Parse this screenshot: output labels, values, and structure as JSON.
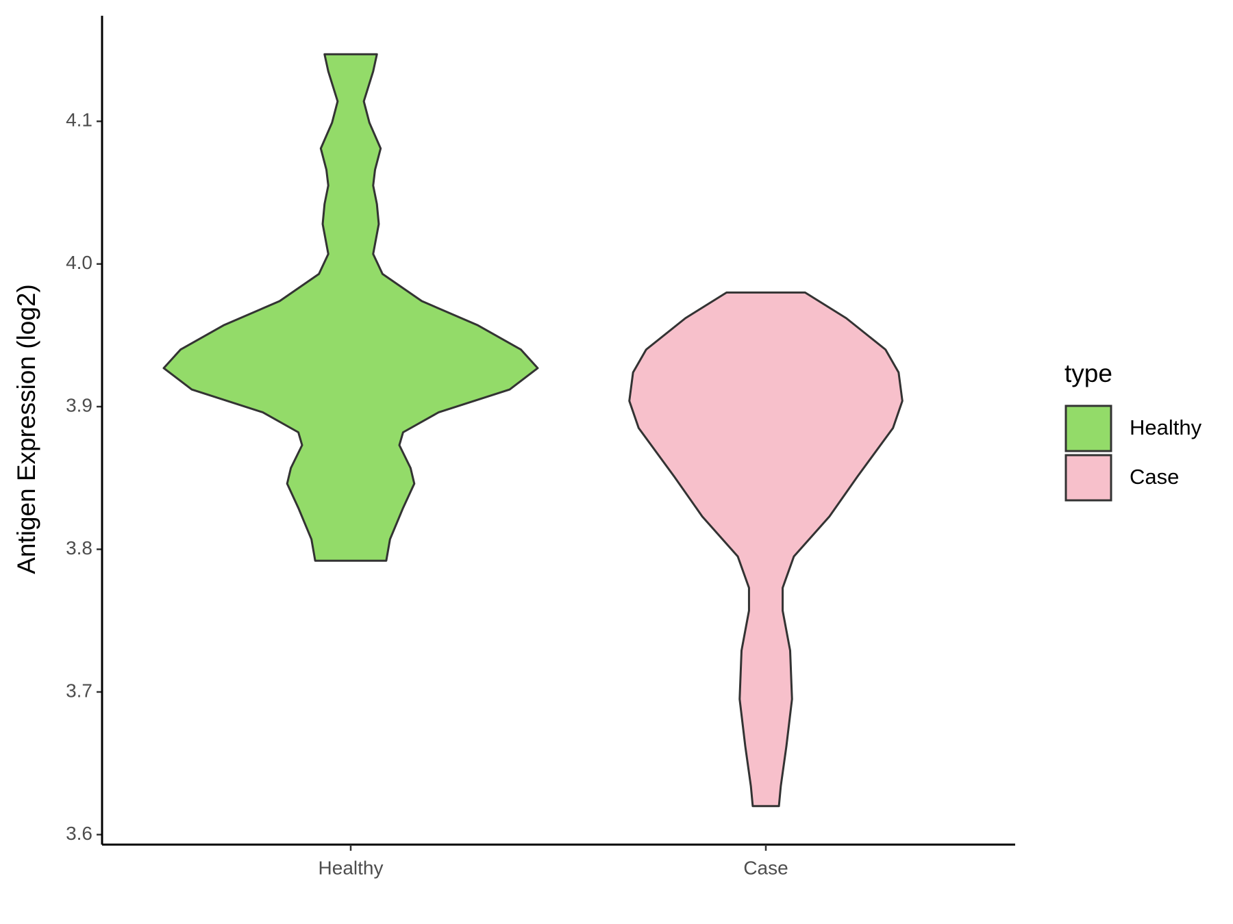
{
  "chart_data": {
    "type": "violin",
    "y_label": "Antigen Expression (log2)",
    "categories": [
      "Healthy",
      "Case"
    ],
    "legend_title": "type",
    "series": [
      {
        "name": "Healthy",
        "color": "#93DB69",
        "y": [
          4.147,
          4.135,
          4.114,
          4.099,
          4.081,
          4.066,
          4.055,
          4.042,
          4.028,
          4.007,
          3.993,
          3.974,
          3.957,
          3.94,
          3.927,
          3.912,
          3.896,
          3.882,
          3.873,
          3.857,
          3.846,
          3.829,
          3.807,
          3.792
        ],
        "density": [
          0.14,
          0.12,
          0.07,
          0.1,
          0.16,
          0.13,
          0.12,
          0.14,
          0.15,
          0.12,
          0.17,
          0.38,
          0.68,
          0.91,
          1.0,
          0.85,
          0.47,
          0.28,
          0.26,
          0.32,
          0.34,
          0.28,
          0.21,
          0.19
        ]
      },
      {
        "name": "Case",
        "color": "#F7C0CB",
        "y": [
          3.98,
          3.962,
          3.94,
          3.924,
          3.904,
          3.885,
          3.851,
          3.823,
          3.795,
          3.773,
          3.757,
          3.729,
          3.695,
          3.662,
          3.634,
          3.62
        ],
        "density": [
          0.21,
          0.43,
          0.64,
          0.71,
          0.73,
          0.68,
          0.49,
          0.34,
          0.15,
          0.09,
          0.09,
          0.13,
          0.14,
          0.11,
          0.08,
          0.07
        ]
      }
    ],
    "ylim": [
      3.593,
      4.174
    ],
    "yticks": [
      3.6,
      3.7,
      3.8,
      3.9,
      {
        "value": 4,
        "label": "4.0"
      },
      4.1
    ],
    "grid": false,
    "legend_position": "right"
  }
}
